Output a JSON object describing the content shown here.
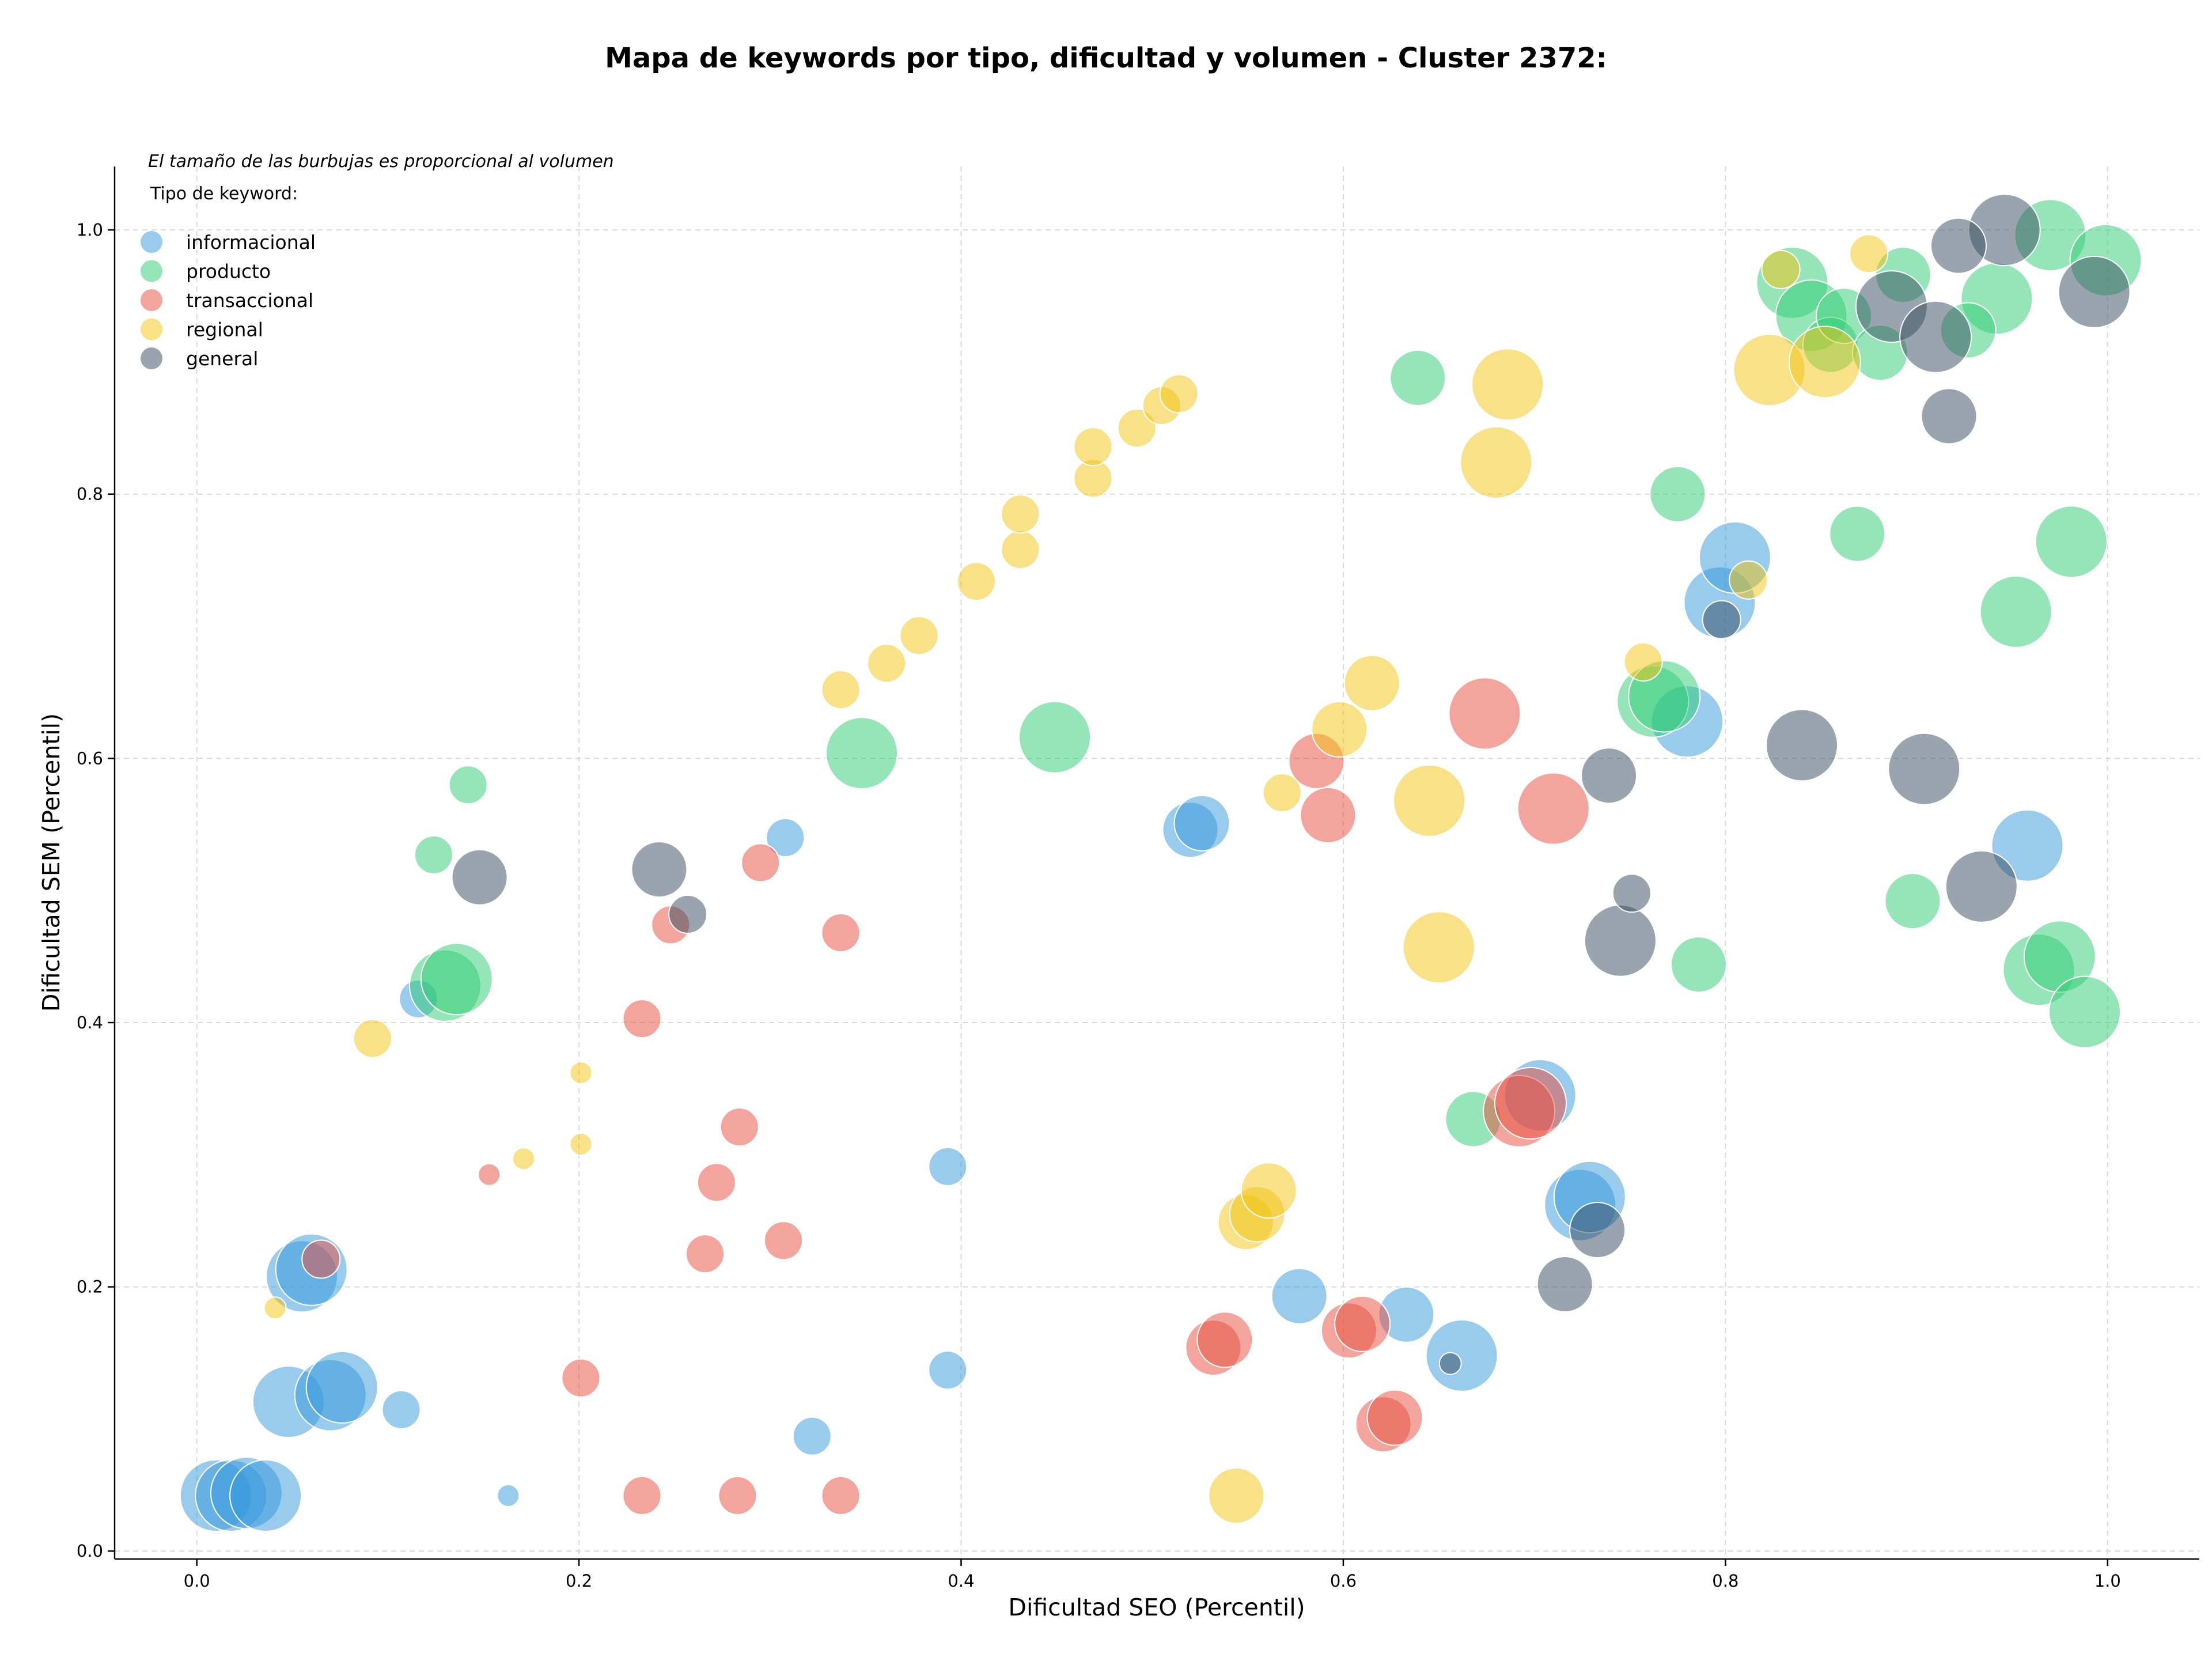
{
  "chart_data": {
    "type": "scatter",
    "title": "Mapa de keywords por tipo, dificultad y volumen - Cluster 2372:",
    "xlabel": "Dificultad SEO (Percentil)",
    "ylabel": "Dificultad SEM (Percentil)",
    "xlim": [
      -0.043,
      1.048
    ],
    "ylim": [
      -0.006,
      1.048
    ],
    "x_ticks": [
      "0.0",
      "0.2",
      "0.4",
      "0.6",
      "0.8",
      "1.0"
    ],
    "y_ticks": [
      "0.0",
      "0.2",
      "0.4",
      "0.6",
      "0.8",
      "1.0"
    ],
    "grid": true,
    "legend_placement": "top-left",
    "bubble_note": "El tamaño de las burbujas es proporcional al volumen",
    "legend_title": "Tipo de keyword:",
    "series": [
      {
        "name": "informacional",
        "color": "#3498db",
        "points": [
          {
            "x": 0.01,
            "y": 0.042,
            "size": 3
          },
          {
            "x": 0.018,
            "y": 0.042,
            "size": 3
          },
          {
            "x": 0.026,
            "y": 0.044,
            "size": 3
          },
          {
            "x": 0.036,
            "y": 0.042,
            "size": 3
          },
          {
            "x": 0.048,
            "y": 0.113,
            "size": 3
          },
          {
            "x": 0.055,
            "y": 0.208,
            "size": 3
          },
          {
            "x": 0.06,
            "y": 0.213,
            "size": 3
          },
          {
            "x": 0.07,
            "y": 0.118,
            "size": 3
          },
          {
            "x": 0.076,
            "y": 0.124,
            "size": 3
          },
          {
            "x": 0.107,
            "y": 0.107,
            "size": 1
          },
          {
            "x": 0.116,
            "y": 0.418,
            "size": 1
          },
          {
            "x": 0.163,
            "y": 0.042,
            "size": 0
          },
          {
            "x": 0.308,
            "y": 0.54,
            "size": 1
          },
          {
            "x": 0.322,
            "y": 0.087,
            "size": 1
          },
          {
            "x": 0.393,
            "y": 0.291,
            "size": 1
          },
          {
            "x": 0.393,
            "y": 0.137,
            "size": 1
          },
          {
            "x": 0.52,
            "y": 0.546,
            "size": 2
          },
          {
            "x": 0.526,
            "y": 0.551,
            "size": 2
          },
          {
            "x": 0.577,
            "y": 0.193,
            "size": 2
          },
          {
            "x": 0.633,
            "y": 0.179,
            "size": 2
          },
          {
            "x": 0.662,
            "y": 0.148,
            "size": 3
          },
          {
            "x": 0.703,
            "y": 0.345,
            "size": 3
          },
          {
            "x": 0.724,
            "y": 0.262,
            "size": 3
          },
          {
            "x": 0.729,
            "y": 0.268,
            "size": 3
          },
          {
            "x": 0.78,
            "y": 0.628,
            "size": 3
          },
          {
            "x": 0.797,
            "y": 0.718,
            "size": 3
          },
          {
            "x": 0.805,
            "y": 0.752,
            "size": 3
          },
          {
            "x": 0.958,
            "y": 0.534,
            "size": 3
          }
        ]
      },
      {
        "name": "producto",
        "color": "#2ecc71",
        "points": [
          {
            "x": 0.124,
            "y": 0.527,
            "size": 1
          },
          {
            "x": 0.13,
            "y": 0.428,
            "size": 3
          },
          {
            "x": 0.136,
            "y": 0.433,
            "size": 3
          },
          {
            "x": 0.142,
            "y": 0.58,
            "size": 1
          },
          {
            "x": 0.348,
            "y": 0.604,
            "size": 3
          },
          {
            "x": 0.449,
            "y": 0.616,
            "size": 3
          },
          {
            "x": 0.639,
            "y": 0.888,
            "size": 2
          },
          {
            "x": 0.668,
            "y": 0.327,
            "size": 2
          },
          {
            "x": 0.762,
            "y": 0.643,
            "size": 3
          },
          {
            "x": 0.768,
            "y": 0.647,
            "size": 3
          },
          {
            "x": 0.775,
            "y": 0.8,
            "size": 2
          },
          {
            "x": 0.786,
            "y": 0.444,
            "size": 2
          },
          {
            "x": 0.835,
            "y": 0.96,
            "size": 3
          },
          {
            "x": 0.845,
            "y": 0.935,
            "size": 3
          },
          {
            "x": 0.855,
            "y": 0.913,
            "size": 2
          },
          {
            "x": 0.862,
            "y": 0.935,
            "size": 2
          },
          {
            "x": 0.869,
            "y": 0.77,
            "size": 2
          },
          {
            "x": 0.881,
            "y": 0.907,
            "size": 2
          },
          {
            "x": 0.893,
            "y": 0.966,
            "size": 2
          },
          {
            "x": 0.898,
            "y": 0.492,
            "size": 2
          },
          {
            "x": 0.927,
            "y": 0.924,
            "size": 2
          },
          {
            "x": 0.942,
            "y": 0.948,
            "size": 3
          },
          {
            "x": 0.952,
            "y": 0.711,
            "size": 3
          },
          {
            "x": 0.964,
            "y": 0.44,
            "size": 3
          },
          {
            "x": 0.97,
            "y": 0.996,
            "size": 3
          },
          {
            "x": 0.975,
            "y": 0.45,
            "size": 3
          },
          {
            "x": 0.981,
            "y": 0.764,
            "size": 3
          },
          {
            "x": 0.988,
            "y": 0.408,
            "size": 3
          },
          {
            "x": 0.999,
            "y": 0.977,
            "size": 3
          }
        ]
      },
      {
        "name": "transaccional",
        "color": "#e74c3c",
        "points": [
          {
            "x": 0.065,
            "y": 0.221,
            "size": 1
          },
          {
            "x": 0.153,
            "y": 0.285,
            "size": 0
          },
          {
            "x": 0.201,
            "y": 0.131,
            "size": 1
          },
          {
            "x": 0.233,
            "y": 0.403,
            "size": 1
          },
          {
            "x": 0.233,
            "y": 0.042,
            "size": 1
          },
          {
            "x": 0.248,
            "y": 0.474,
            "size": 1
          },
          {
            "x": 0.266,
            "y": 0.225,
            "size": 1
          },
          {
            "x": 0.272,
            "y": 0.279,
            "size": 1
          },
          {
            "x": 0.283,
            "y": 0.042,
            "size": 1
          },
          {
            "x": 0.284,
            "y": 0.321,
            "size": 1
          },
          {
            "x": 0.295,
            "y": 0.521,
            "size": 1
          },
          {
            "x": 0.307,
            "y": 0.235,
            "size": 1
          },
          {
            "x": 0.337,
            "y": 0.468,
            "size": 1
          },
          {
            "x": 0.337,
            "y": 0.042,
            "size": 1
          },
          {
            "x": 0.532,
            "y": 0.154,
            "size": 2
          },
          {
            "x": 0.538,
            "y": 0.16,
            "size": 2
          },
          {
            "x": 0.586,
            "y": 0.598,
            "size": 2
          },
          {
            "x": 0.592,
            "y": 0.557,
            "size": 2
          },
          {
            "x": 0.603,
            "y": 0.167,
            "size": 2
          },
          {
            "x": 0.61,
            "y": 0.172,
            "size": 2
          },
          {
            "x": 0.621,
            "y": 0.096,
            "size": 2
          },
          {
            "x": 0.627,
            "y": 0.101,
            "size": 2
          },
          {
            "x": 0.674,
            "y": 0.634,
            "size": 3
          },
          {
            "x": 0.692,
            "y": 0.333,
            "size": 3
          },
          {
            "x": 0.698,
            "y": 0.339,
            "size": 3
          },
          {
            "x": 0.71,
            "y": 0.562,
            "size": 3
          }
        ]
      },
      {
        "name": "regional",
        "color": "#f1c40f",
        "points": [
          {
            "x": 0.041,
            "y": 0.184,
            "size": 0
          },
          {
            "x": 0.092,
            "y": 0.388,
            "size": 1
          },
          {
            "x": 0.171,
            "y": 0.297,
            "size": 0
          },
          {
            "x": 0.201,
            "y": 0.362,
            "size": 0
          },
          {
            "x": 0.201,
            "y": 0.308,
            "size": 0
          },
          {
            "x": 0.337,
            "y": 0.652,
            "size": 1
          },
          {
            "x": 0.361,
            "y": 0.672,
            "size": 1
          },
          {
            "x": 0.378,
            "y": 0.693,
            "size": 1
          },
          {
            "x": 0.408,
            "y": 0.734,
            "size": 1
          },
          {
            "x": 0.431,
            "y": 0.758,
            "size": 1
          },
          {
            "x": 0.431,
            "y": 0.785,
            "size": 1
          },
          {
            "x": 0.469,
            "y": 0.812,
            "size": 1
          },
          {
            "x": 0.469,
            "y": 0.836,
            "size": 1
          },
          {
            "x": 0.492,
            "y": 0.85,
            "size": 1
          },
          {
            "x": 0.505,
            "y": 0.867,
            "size": 1
          },
          {
            "x": 0.514,
            "y": 0.876,
            "size": 1
          },
          {
            "x": 0.544,
            "y": 0.042,
            "size": 2
          },
          {
            "x": 0.549,
            "y": 0.249,
            "size": 2
          },
          {
            "x": 0.555,
            "y": 0.255,
            "size": 2
          },
          {
            "x": 0.561,
            "y": 0.273,
            "size": 2
          },
          {
            "x": 0.568,
            "y": 0.574,
            "size": 1
          },
          {
            "x": 0.598,
            "y": 0.622,
            "size": 2
          },
          {
            "x": 0.615,
            "y": 0.657,
            "size": 2
          },
          {
            "x": 0.645,
            "y": 0.568,
            "size": 3
          },
          {
            "x": 0.65,
            "y": 0.457,
            "size": 3
          },
          {
            "x": 0.68,
            "y": 0.824,
            "size": 3
          },
          {
            "x": 0.686,
            "y": 0.883,
            "size": 3
          },
          {
            "x": 0.757,
            "y": 0.673,
            "size": 1
          },
          {
            "x": 0.812,
            "y": 0.735,
            "size": 1
          },
          {
            "x": 0.823,
            "y": 0.894,
            "size": 3
          },
          {
            "x": 0.829,
            "y": 0.97,
            "size": 1
          },
          {
            "x": 0.852,
            "y": 0.9,
            "size": 3
          },
          {
            "x": 0.875,
            "y": 0.982,
            "size": 1
          }
        ]
      },
      {
        "name": "general",
        "color": "#34495e",
        "points": [
          {
            "x": 0.148,
            "y": 0.51,
            "size": 2
          },
          {
            "x": 0.242,
            "y": 0.516,
            "size": 2
          },
          {
            "x": 0.257,
            "y": 0.482,
            "size": 1
          },
          {
            "x": 0.656,
            "y": 0.142,
            "size": 0
          },
          {
            "x": 0.716,
            "y": 0.202,
            "size": 2
          },
          {
            "x": 0.733,
            "y": 0.243,
            "size": 2
          },
          {
            "x": 0.739,
            "y": 0.587,
            "size": 2
          },
          {
            "x": 0.745,
            "y": 0.462,
            "size": 3
          },
          {
            "x": 0.751,
            "y": 0.498,
            "size": 1
          },
          {
            "x": 0.798,
            "y": 0.705,
            "size": 1
          },
          {
            "x": 0.84,
            "y": 0.61,
            "size": 3
          },
          {
            "x": 0.887,
            "y": 0.942,
            "size": 3
          },
          {
            "x": 0.904,
            "y": 0.592,
            "size": 3
          },
          {
            "x": 0.91,
            "y": 0.919,
            "size": 3
          },
          {
            "x": 0.917,
            "y": 0.859,
            "size": 2
          },
          {
            "x": 0.922,
            "y": 0.988,
            "size": 2
          },
          {
            "x": 0.934,
            "y": 0.503,
            "size": 3
          },
          {
            "x": 0.946,
            "y": 1.0,
            "size": 3
          },
          {
            "x": 0.993,
            "y": 0.953,
            "size": 3
          }
        ]
      }
    ]
  }
}
